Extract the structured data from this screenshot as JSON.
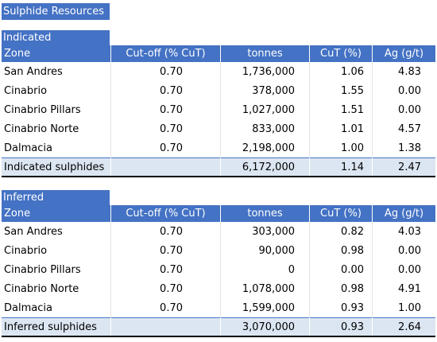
{
  "title": "Sulphide Resources",
  "indicated": {
    "label": "Indicated",
    "headers": [
      "Zone",
      "Cut-off (% CuT)",
      "tonnes",
      "CuT (%)",
      "Ag (g/t)"
    ],
    "rows": [
      [
        "San Andres",
        "0.70",
        "1,736,000",
        "1.06",
        "4.83"
      ],
      [
        "Cinabrio",
        "0.70",
        "378,000",
        "1.55",
        "0.00"
      ],
      [
        "Cinabrio Pillars",
        "0.70",
        "1,027,000",
        "1.51",
        "0.00"
      ],
      [
        "Cinabrio Norte",
        "0.70",
        "833,000",
        "1.01",
        "4.57"
      ],
      [
        "Dalmacia",
        "0.70",
        "2,198,000",
        "1.00",
        "1.38"
      ]
    ],
    "total": [
      "Indicated sulphides",
      "",
      "6,172,000",
      "1.14",
      "2.47"
    ]
  },
  "inferred": {
    "label": "Inferred",
    "headers": [
      "Zone",
      "Cut-off (% CuT)",
      "tonnes",
      "CuT (%)",
      "Ag (g/t)"
    ],
    "rows": [
      [
        "San Andres",
        "0.70",
        "303,000",
        "0.82",
        "4.03"
      ],
      [
        "Cinabrio",
        "0.70",
        "90,000",
        "0.98",
        "0.00"
      ],
      [
        "Cinabrio Pillars",
        "0.70",
        "0",
        "0.00",
        "0.00"
      ],
      [
        "Cinabrio Norte",
        "0.70",
        "1,078,000",
        "0.98",
        "4.91"
      ],
      [
        "Dalmacia",
        "0.70",
        "1,599,000",
        "0.93",
        "1.00"
      ]
    ],
    "total": [
      "Inferred sulphides",
      "",
      "3,070,000",
      "0.93",
      "2.64"
    ]
  }
}
